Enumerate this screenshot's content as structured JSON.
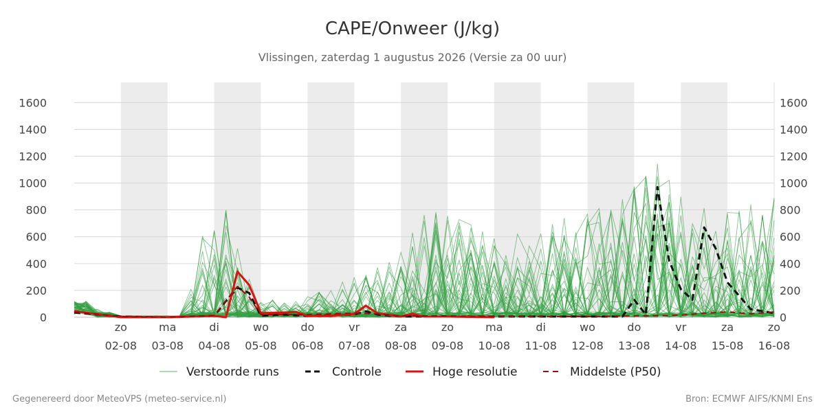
{
  "header": {
    "title": "CAPE/Onweer (J/kg)",
    "subtitle": "Vlissingen, zaterdag  1 augustus 2026 (Versie za 00 uur)"
  },
  "legend": {
    "perturbed": "Verstoorde runs",
    "control": "Controle",
    "hires": "Hoge resolutie",
    "median": "Middelste (P50)"
  },
  "footer": {
    "left": "Gegenereerd door MeteoVPS (meteo-service.nl)",
    "right": "Bron: ECMWF AIFS/KNMI Ens"
  },
  "colors": {
    "perturbed": "#2e9e3e",
    "control": "#111111",
    "hires": "#e01010",
    "median": "#9b0d0d",
    "weekend_band": "#ececec",
    "grid": "#d6d6d6"
  },
  "chart_data": {
    "type": "line",
    "y_unit": "J/kg",
    "ylim": [
      0,
      1750
    ],
    "yticks": [
      0,
      200,
      400,
      600,
      800,
      1000,
      1200,
      1400,
      1600
    ],
    "grid": true,
    "legend_position": "bottom",
    "x_start": "2026-08-01",
    "x_end": "2026-08-16",
    "xticks": [
      {
        "day": "zo",
        "date": "02-08"
      },
      {
        "day": "ma",
        "date": "03-08"
      },
      {
        "day": "di",
        "date": "04-08"
      },
      {
        "day": "wo",
        "date": "05-08"
      },
      {
        "day": "do",
        "date": "06-08"
      },
      {
        "day": "vr",
        "date": "07-08"
      },
      {
        "day": "za",
        "date": "08-08"
      },
      {
        "day": "zo",
        "date": "09-08"
      },
      {
        "day": "ma",
        "date": "10-08"
      },
      {
        "day": "di",
        "date": "11-08"
      },
      {
        "day": "wo",
        "date": "12-08"
      },
      {
        "day": "do",
        "date": "13-08"
      },
      {
        "day": "vr",
        "date": "14-08"
      },
      {
        "day": "za",
        "date": "15-08"
      },
      {
        "day": "zo",
        "date": "16-08"
      }
    ],
    "shaded_days": [
      "2026-08-02",
      "2026-08-04",
      "2026-08-06",
      "2026-08-08",
      "2026-08-10",
      "2026-08-12",
      "2026-08-14"
    ],
    "series": [
      {
        "name": "Controle",
        "x": [
          "2026-08-01 00:00",
          "2026-08-02 00:00",
          "2026-08-03 00:00",
          "2026-08-04 00:00",
          "2026-08-04 06:00",
          "2026-08-04 12:00",
          "2026-08-04 18:00",
          "2026-08-05 00:00",
          "2026-08-05 12:00",
          "2026-08-06 00:00",
          "2026-08-07 00:00",
          "2026-08-07 06:00",
          "2026-08-07 12:00",
          "2026-08-08 00:00",
          "2026-08-09 00:00",
          "2026-08-10 00:00",
          "2026-08-11 00:00",
          "2026-08-12 00:00",
          "2026-08-12 18:00",
          "2026-08-13 00:00",
          "2026-08-13 06:00",
          "2026-08-13 12:00",
          "2026-08-13 18:00",
          "2026-08-14 00:00",
          "2026-08-14 06:00",
          "2026-08-14 12:00",
          "2026-08-14 18:00",
          "2026-08-15 00:00",
          "2026-08-15 12:00",
          "2026-08-16 00:00"
        ],
        "y": [
          35,
          5,
          0,
          10,
          120,
          220,
          180,
          10,
          20,
          10,
          20,
          45,
          20,
          5,
          5,
          5,
          5,
          5,
          5,
          130,
          20,
          970,
          420,
          210,
          130,
          670,
          510,
          260,
          60,
          30
        ]
      },
      {
        "name": "Hoge resolutie",
        "x": [
          "2026-08-01 00:00",
          "2026-08-02 00:00",
          "2026-08-03 00:00",
          "2026-08-04 00:00",
          "2026-08-04 06:00",
          "2026-08-04 12:00",
          "2026-08-04 18:00",
          "2026-08-05 00:00",
          "2026-08-05 12:00",
          "2026-08-05 18:00",
          "2026-08-06 00:00",
          "2026-08-06 12:00",
          "2026-08-07 00:00",
          "2026-08-07 06:00",
          "2026-08-07 12:00",
          "2026-08-08 00:00",
          "2026-08-08 06:00",
          "2026-08-08 12:00",
          "2026-08-09 00:00",
          "2026-08-10 00:00"
        ],
        "y": [
          45,
          0,
          0,
          10,
          0,
          340,
          240,
          30,
          35,
          40,
          10,
          10,
          25,
          85,
          30,
          5,
          25,
          5,
          5,
          0
        ]
      },
      {
        "name": "Middelste (P50)",
        "x": [
          "2026-08-01 00:00",
          "2026-08-02 00:00",
          "2026-08-03 00:00",
          "2026-08-04 00:00",
          "2026-08-04 12:00",
          "2026-08-04 18:00",
          "2026-08-05 00:00",
          "2026-08-06 00:00",
          "2026-08-07 00:00",
          "2026-08-07 12:00",
          "2026-08-08 00:00",
          "2026-08-09 00:00",
          "2026-08-10 00:00",
          "2026-08-11 00:00",
          "2026-08-12 00:00",
          "2026-08-13 00:00",
          "2026-08-14 00:00",
          "2026-08-14 12:00",
          "2026-08-15 00:00",
          "2026-08-15 12:00",
          "2026-08-16 00:00"
        ],
        "y": [
          40,
          5,
          0,
          15,
          230,
          150,
          20,
          20,
          30,
          25,
          10,
          10,
          5,
          5,
          5,
          10,
          15,
          30,
          40,
          25,
          40
        ]
      }
    ]
  }
}
